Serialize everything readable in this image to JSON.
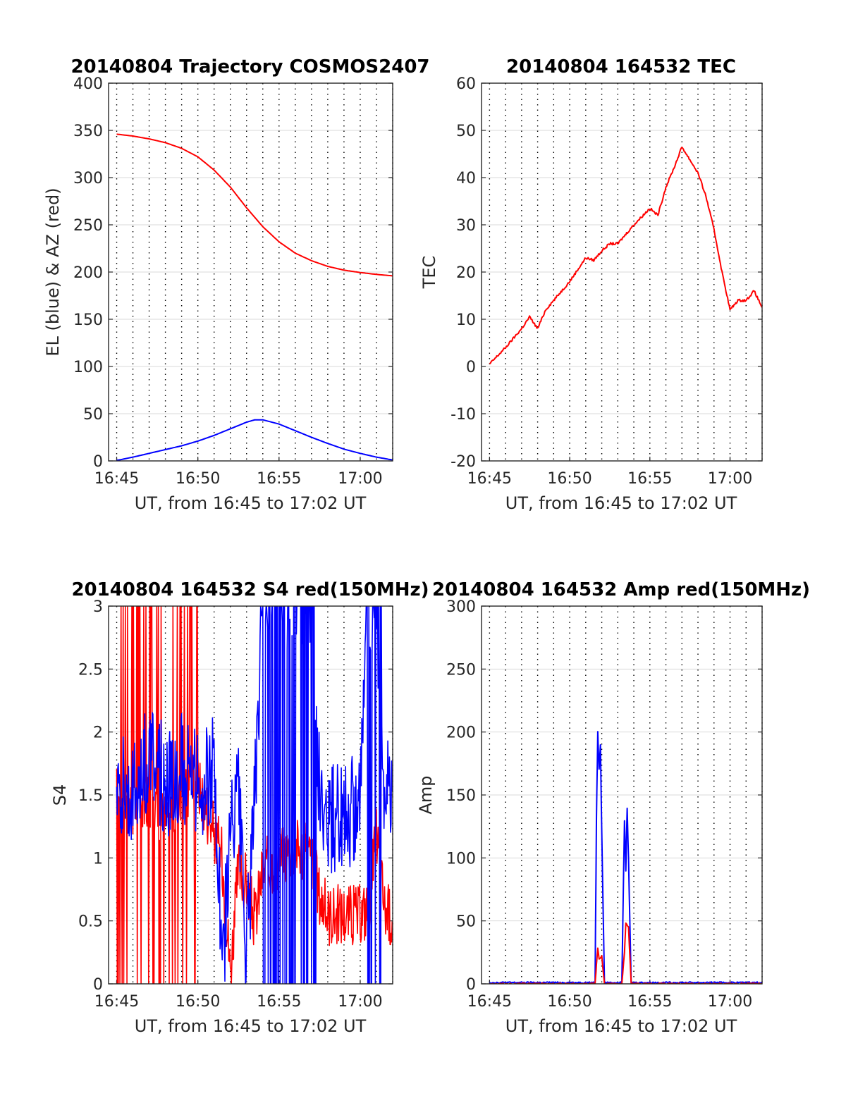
{
  "figure": {
    "x_axis_label": "UT, from 16:45 to 17:02 UT",
    "x_tick_labels": [
      "16:45",
      "16:50",
      "16:55",
      "17:00"
    ]
  },
  "colors": {
    "red": "#ff0000",
    "blue": "#0000ff",
    "grid": "#d9d9d9",
    "axis": "#262626"
  },
  "chart_data": [
    {
      "type": "line",
      "title": "20140804 Trajectory COSMOS2407",
      "xlabel": "UT, from 16:45 to 17:02 UT",
      "ylabel": "EL (blue) & AZ (red)",
      "xlim": [
        "16:44:30",
        "17:02:00"
      ],
      "ylim": [
        0,
        400
      ],
      "x_ticks": [
        "16:45",
        "16:50",
        "16:55",
        "17:00"
      ],
      "y_ticks": [
        0,
        50,
        100,
        150,
        200,
        250,
        300,
        350,
        400
      ],
      "grid": true,
      "series": [
        {
          "color": "blue",
          "x": [
            "16:45:00",
            "16:46:00",
            "16:47:00",
            "16:48:00",
            "16:49:00",
            "16:50:00",
            "16:51:00",
            "16:52:00",
            "16:53:00",
            "16:53:30",
            "16:54:00",
            "16:55:00",
            "16:56:00",
            "16:57:00",
            "16:58:00",
            "16:59:00",
            "17:00:00",
            "17:01:00",
            "17:02:00"
          ],
          "values": [
            0.5,
            4,
            8,
            12,
            16,
            21,
            27,
            34,
            41,
            43.5,
            43.5,
            39,
            32,
            25,
            18.5,
            12.5,
            8,
            4,
            1
          ]
        },
        {
          "color": "red",
          "x": [
            "16:45:00",
            "16:46:00",
            "16:47:00",
            "16:48:00",
            "16:49:00",
            "16:50:00",
            "16:51:00",
            "16:52:00",
            "16:53:00",
            "16:54:00",
            "16:55:00",
            "16:56:00",
            "16:57:00",
            "16:58:00",
            "16:59:00",
            "17:00:00",
            "17:01:00",
            "17:02:00"
          ],
          "values": [
            346,
            344,
            341,
            337,
            331,
            322,
            308,
            290,
            268,
            248,
            232,
            220,
            212,
            206,
            202,
            199.5,
            197.5,
            196
          ]
        }
      ]
    },
    {
      "type": "line",
      "title": "20140804 164532 TEC",
      "xlabel": "UT, from 16:45 to 17:02 UT",
      "ylabel": "TEC",
      "xlim": [
        "16:44:30",
        "17:02:00"
      ],
      "ylim": [
        -20,
        60
      ],
      "x_ticks": [
        "16:45",
        "16:50",
        "16:55",
        "17:00"
      ],
      "y_ticks": [
        -20,
        -10,
        0,
        10,
        20,
        30,
        40,
        50,
        60
      ],
      "grid": true,
      "series": [
        {
          "color": "red",
          "x": [
            "16:45:00",
            "16:46:00",
            "16:47:00",
            "16:47:30",
            "16:48:00",
            "16:48:30",
            "16:49:00",
            "16:50:00",
            "16:51:00",
            "16:51:30",
            "16:52:00",
            "16:52:30",
            "16:53:00",
            "16:53:30",
            "16:54:00",
            "16:55:00",
            "16:55:30",
            "16:56:00",
            "16:56:30",
            "16:57:00",
            "16:58:00",
            "16:58:30",
            "16:59:00",
            "16:59:30",
            "17:00:00",
            "17:00:30",
            "17:01:00",
            "17:01:30",
            "17:02:00"
          ],
          "values": [
            0.5,
            4,
            8,
            10.5,
            8,
            12,
            14,
            18,
            23,
            22.5,
            24.5,
            26,
            26,
            28,
            30,
            33.5,
            32,
            38,
            42,
            46.5,
            41,
            36,
            29,
            20,
            12,
            14,
            14,
            16,
            12.5
          ]
        }
      ]
    },
    {
      "type": "line",
      "title": "20140804 164532 S4 red(150MHz)",
      "xlabel": "UT, from 16:45 to 17:02 UT",
      "ylabel": "S4",
      "xlim": [
        "16:44:30",
        "17:02:00"
      ],
      "ylim": [
        0,
        3
      ],
      "x_ticks": [
        "16:45",
        "16:50",
        "16:55",
        "17:00"
      ],
      "y_ticks": [
        0,
        0.5,
        1,
        1.5,
        2,
        2.5,
        3
      ],
      "grid": true,
      "series": [
        {
          "color": "red",
          "x": [
            "16:45:00",
            "16:46:00",
            "16:47:00",
            "16:48:00",
            "16:49:00",
            "16:50:00",
            "16:51:00",
            "16:51:30",
            "16:52:00",
            "16:52:30",
            "16:53:00",
            "16:53:30",
            "16:54:00",
            "16:55:00",
            "16:56:00",
            "16:57:00",
            "16:57:30",
            "16:58:00",
            "16:59:00",
            "17:00:00",
            "17:00:30",
            "17:01:00",
            "17:01:30",
            "17:02:00"
          ],
          "values": [
            1.5,
            1.4,
            1.5,
            1.3,
            1.5,
            1.6,
            1.2,
            1.0,
            0.1,
            0.9,
            0.8,
            0.5,
            0.9,
            1.0,
            1.1,
            1.0,
            0.7,
            0.55,
            0.55,
            0.55,
            0.6,
            1.2,
            0.6,
            0.5
          ]
        },
        {
          "color": "blue",
          "x": [
            "16:45:00",
            "16:46:00",
            "16:47:00",
            "16:48:00",
            "16:49:00",
            "16:50:00",
            "16:51:00",
            "16:51:30",
            "16:52:00",
            "16:52:30",
            "16:53:00",
            "16:53:30",
            "16:54:00",
            "16:55:00",
            "16:56:00",
            "16:57:00",
            "16:57:30",
            "16:58:00",
            "16:59:00",
            "17:00:00",
            "17:00:30",
            "17:01:00",
            "17:01:30",
            "17:02:00"
          ],
          "values": [
            1.7,
            1.5,
            1.8,
            1.6,
            1.7,
            1.6,
            1.7,
            0.1,
            1.2,
            1.5,
            0.2,
            1.4,
            3.0,
            3.0,
            3.0,
            3.0,
            1.5,
            1.3,
            1.3,
            1.5,
            3.0,
            3.0,
            1.5,
            1.7
          ]
        }
      ]
    },
    {
      "type": "line",
      "title": "20140804 164532 Amp red(150MHz)",
      "xlabel": "UT, from 16:45 to 17:02 UT",
      "ylabel": "Amp",
      "xlim": [
        "16:44:30",
        "17:02:00"
      ],
      "ylim": [
        0,
        300
      ],
      "x_ticks": [
        "16:45",
        "16:50",
        "16:55",
        "17:00"
      ],
      "y_ticks": [
        0,
        50,
        100,
        150,
        200,
        250,
        300
      ],
      "grid": true,
      "series": [
        {
          "color": "blue",
          "x": [
            "16:45:00",
            "16:50:00",
            "16:51:35",
            "16:51:40",
            "16:51:45",
            "16:51:50",
            "16:51:55",
            "16:52:00",
            "16:52:10",
            "16:53:15",
            "16:53:25",
            "16:53:30",
            "16:53:35",
            "16:53:40",
            "16:53:50",
            "16:55:00",
            "17:00:00",
            "17:02:00"
          ],
          "values": [
            1,
            1,
            1,
            130,
            200,
            170,
            190,
            120,
            1,
            1,
            130,
            90,
            140,
            100,
            1,
            1,
            1,
            1
          ]
        },
        {
          "color": "red",
          "x": [
            "16:45:00",
            "16:51:35",
            "16:51:40",
            "16:51:45",
            "16:51:50",
            "16:52:00",
            "16:52:10",
            "16:53:15",
            "16:53:25",
            "16:53:30",
            "16:53:40",
            "16:53:50",
            "17:02:00"
          ],
          "values": [
            0,
            0,
            15,
            28,
            20,
            22,
            0,
            0,
            25,
            48,
            45,
            0,
            0
          ]
        }
      ]
    }
  ]
}
